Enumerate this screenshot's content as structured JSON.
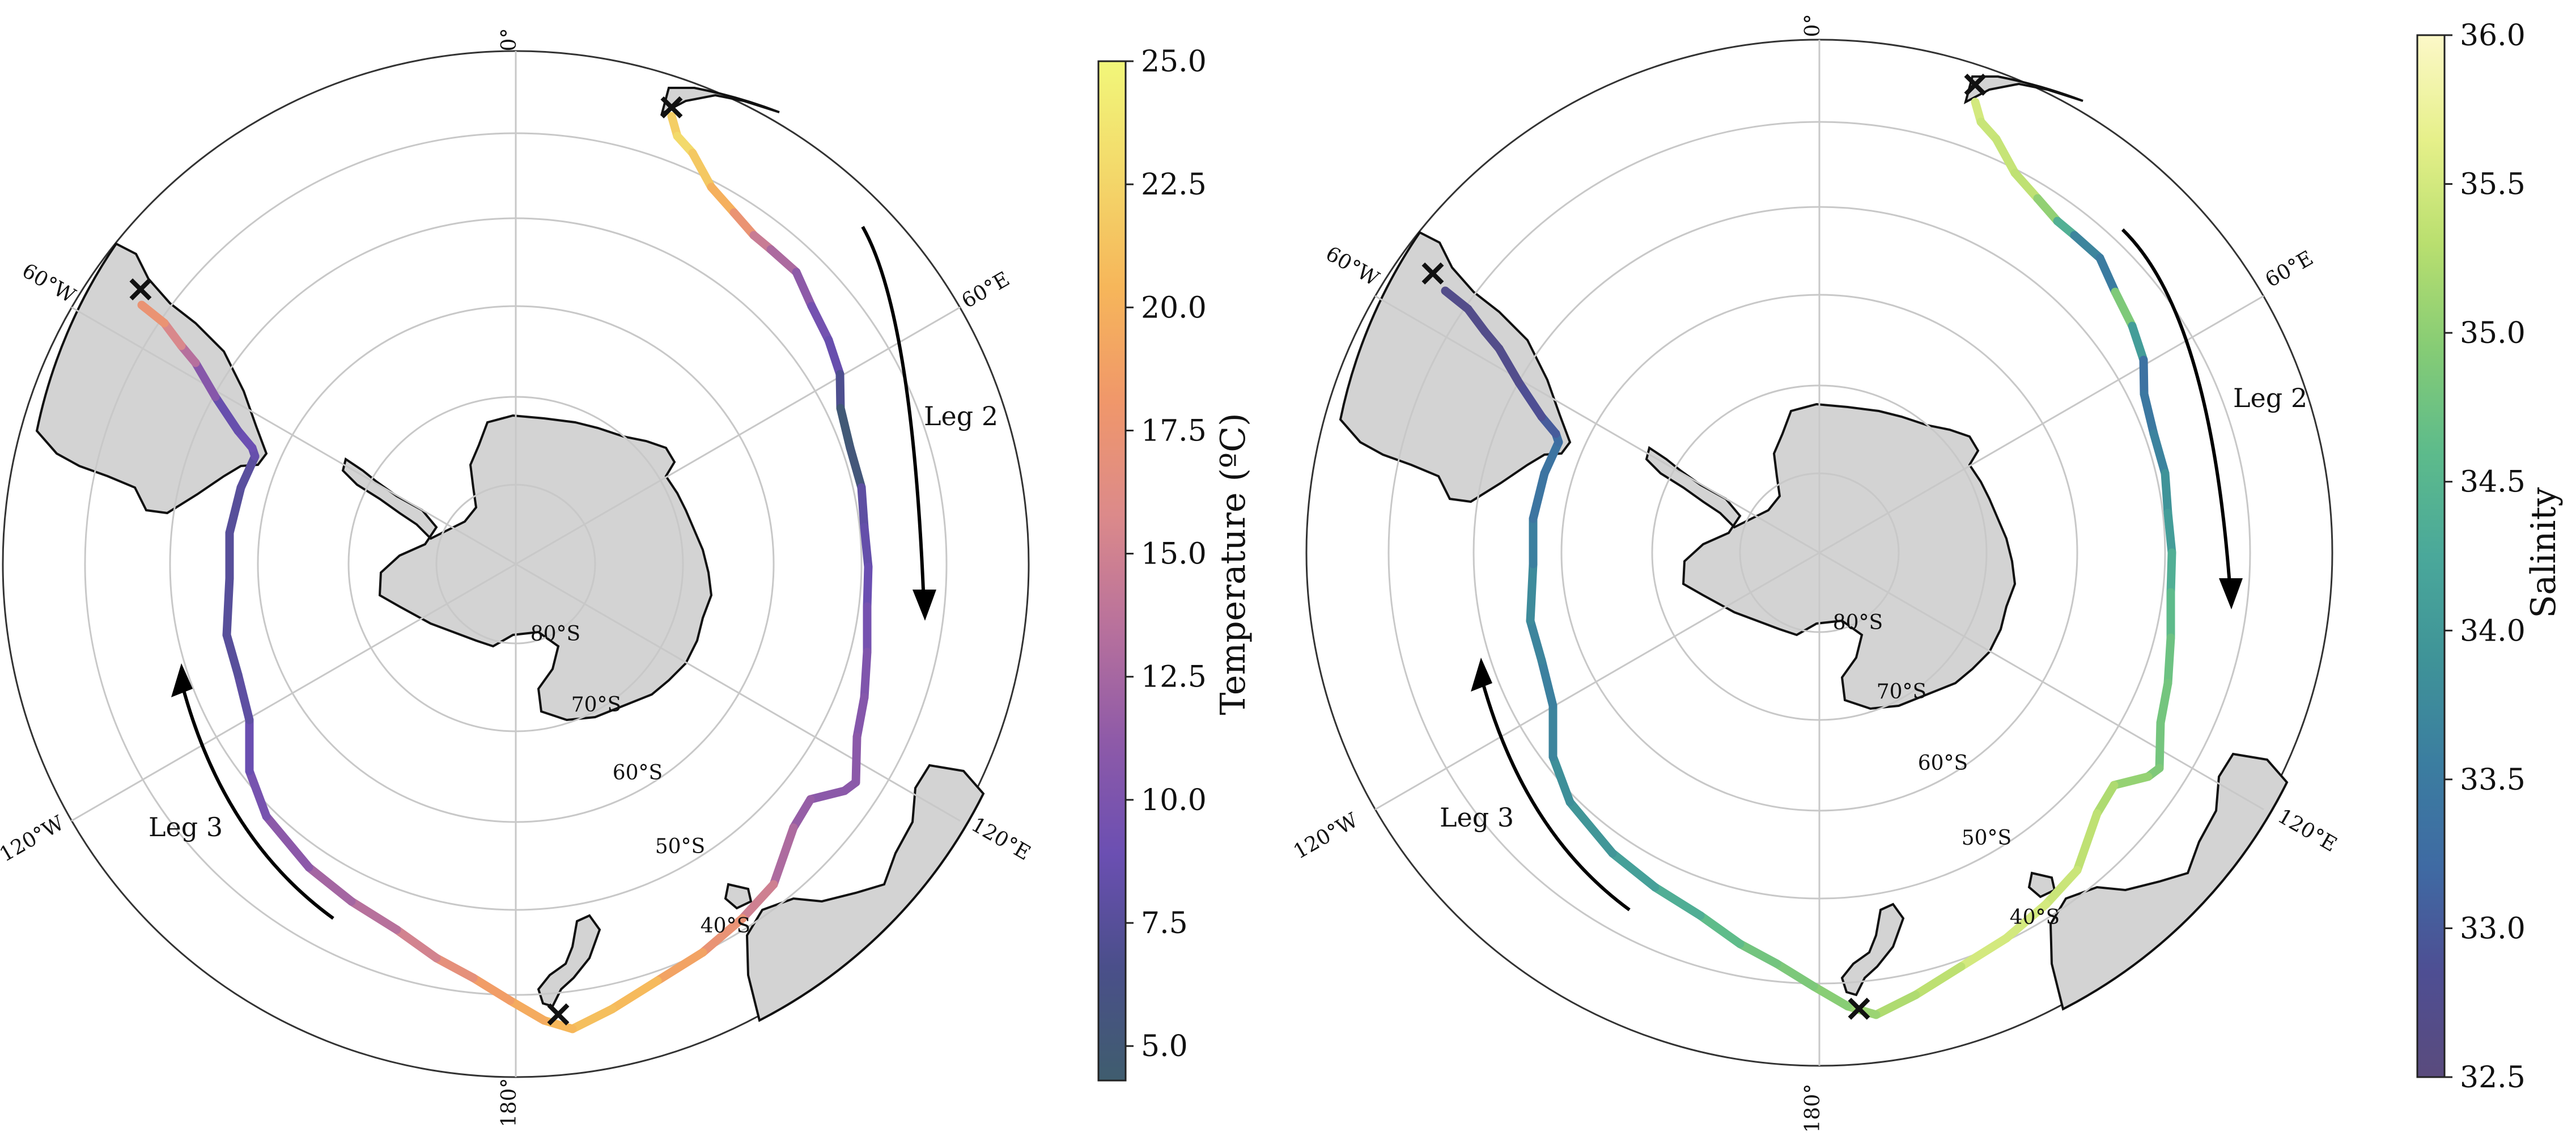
{
  "figure": {
    "panels": [
      {
        "id": "temperature",
        "colorbar": {
          "label": "Temperature (ºC)",
          "ticks": [
            "5.0",
            "7.5",
            "10.0",
            "12.5",
            "15.0",
            "17.5",
            "20.0",
            "22.5",
            "25.0"
          ],
          "range": [
            4.3,
            25.0
          ],
          "colormap": [
            "#3f5d6e",
            "#4a4f8a",
            "#6b4fb2",
            "#8e5aa8",
            "#b8719c",
            "#dc8a8a",
            "#f0976a",
            "#f6b65a",
            "#f3d86a",
            "#f2f77a"
          ]
        },
        "legs": [
          {
            "label": "Leg 2",
            "direction": "clockwise"
          },
          {
            "label": "Leg 3",
            "direction": "anticlockwise"
          }
        ]
      },
      {
        "id": "salinity",
        "colorbar": {
          "label": "Salinity",
          "ticks": [
            "32.5",
            "33.0",
            "33.5",
            "34.0",
            "34.5",
            "35.0",
            "35.5",
            "36.0"
          ],
          "range": [
            32.5,
            36.0
          ],
          "colormap": [
            "#5a4b7d",
            "#4e4e93",
            "#3f6aa3",
            "#3b7da0",
            "#3f9398",
            "#4aa89a",
            "#5dbb8b",
            "#86cc75",
            "#b9df6f",
            "#e6f08a",
            "#fcf8c8"
          ]
        },
        "legs": [
          {
            "label": "Leg 2",
            "direction": "clockwise"
          },
          {
            "label": "Leg 3",
            "direction": "anticlockwise"
          }
        ]
      }
    ],
    "latitude_labels": [
      "80°S",
      "70°S",
      "60°S",
      "50°S",
      "40°S"
    ],
    "longitude_labels": {
      "top": "0°",
      "bottom": "180°",
      "upper_left": "60°W",
      "upper_right": "60°E",
      "lower_left": "120°W",
      "lower_right": "120°E"
    },
    "land_color": "#d3d3d3",
    "grid_color": "#c8c8c8",
    "marker": "✕",
    "track": {
      "temperature_values": [
        22,
        23,
        21,
        19,
        15,
        13,
        11,
        9,
        8.5,
        5,
        4.8,
        8,
        8.5,
        9,
        10,
        10.5,
        11,
        11,
        11,
        12,
        14,
        17,
        19,
        21,
        21,
        20,
        19,
        17,
        15,
        13,
        12,
        10,
        9,
        8,
        7.5,
        7.5,
        7.5,
        7.5,
        8.5,
        9,
        8.5,
        12,
        15,
        17,
        20
      ],
      "salinity_values": [
        35.5,
        35.4,
        35.4,
        35.3,
        34.6,
        33.7,
        33.5,
        35.3,
        33.3,
        33.4,
        33.6,
        33.9,
        34.1,
        34.5,
        34.7,
        34.8,
        34.8,
        34.9,
        35.1,
        35.3,
        35.4,
        35.5,
        35.5,
        35.3,
        35.2,
        35.0,
        34.9,
        34.8,
        34.6,
        34.3,
        34.0,
        33.9,
        33.7,
        33.6,
        33.7,
        33.8,
        33.4,
        33.4,
        33.3,
        33.0,
        32.8,
        32.7,
        32.7,
        32.7,
        32.7
      ]
    }
  }
}
